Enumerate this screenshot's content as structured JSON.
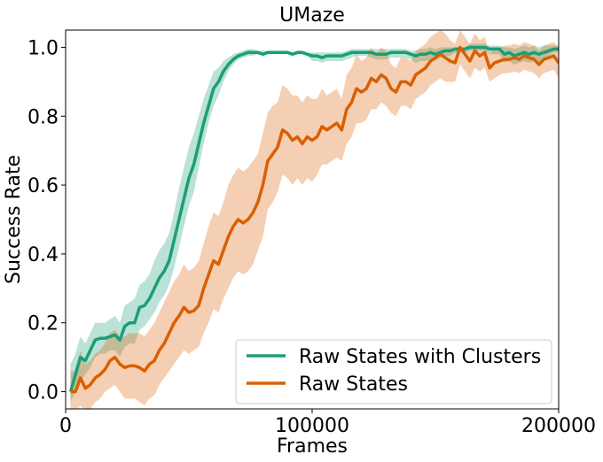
{
  "chart_data": {
    "type": "line",
    "title": "UMaze",
    "xlabel": "Frames",
    "ylabel": "Success Rate",
    "xlim": [
      0,
      200000
    ],
    "ylim": [
      -0.05,
      1.05
    ],
    "x_ticks": [
      0,
      100000,
      200000
    ],
    "x_tick_labels": [
      "0",
      "100000",
      "200000"
    ],
    "y_ticks": [
      0.0,
      0.2,
      0.4,
      0.6,
      0.8,
      1.0
    ],
    "y_tick_labels": [
      "0.0",
      "0.2",
      "0.4",
      "0.6",
      "0.8",
      "1.0"
    ],
    "grid": false,
    "legend_position": "lower-right",
    "x": [
      2000,
      4000,
      6000,
      8000,
      10000,
      12000,
      14000,
      16000,
      18000,
      20000,
      22000,
      24000,
      26000,
      28000,
      30000,
      32000,
      34000,
      36000,
      38000,
      40000,
      42000,
      44000,
      46000,
      48000,
      50000,
      52000,
      54000,
      56000,
      58000,
      60000,
      62000,
      64000,
      66000,
      68000,
      70000,
      72000,
      74000,
      76000,
      78000,
      80000,
      82000,
      84000,
      86000,
      88000,
      90000,
      92000,
      94000,
      96000,
      98000,
      100000,
      102000,
      104000,
      106000,
      108000,
      110000,
      112000,
      114000,
      116000,
      118000,
      120000,
      122000,
      124000,
      126000,
      128000,
      130000,
      132000,
      134000,
      136000,
      138000,
      140000,
      142000,
      144000,
      146000,
      148000,
      150000,
      152000,
      154000,
      156000,
      158000,
      160000,
      162000,
      164000,
      166000,
      168000,
      170000,
      172000,
      174000,
      176000,
      178000,
      180000,
      182000,
      184000,
      186000,
      188000,
      190000,
      192000,
      194000,
      196000,
      198000,
      200000
    ],
    "series": [
      {
        "name": "Raw States with Clusters",
        "color": "#1b9e77",
        "values": [
          0.0,
          0.05,
          0.1,
          0.09,
          0.12,
          0.15,
          0.155,
          0.155,
          0.16,
          0.165,
          0.15,
          0.19,
          0.2,
          0.2,
          0.245,
          0.25,
          0.27,
          0.3,
          0.33,
          0.35,
          0.38,
          0.44,
          0.5,
          0.56,
          0.62,
          0.66,
          0.72,
          0.78,
          0.83,
          0.88,
          0.9,
          0.93,
          0.95,
          0.965,
          0.975,
          0.98,
          0.985,
          0.985,
          0.985,
          0.98,
          0.985,
          0.985,
          0.985,
          0.985,
          0.985,
          0.98,
          0.985,
          0.985,
          0.98,
          0.975,
          0.975,
          0.97,
          0.975,
          0.975,
          0.975,
          0.975,
          0.98,
          0.985,
          0.985,
          0.985,
          0.985,
          0.985,
          0.98,
          0.98,
          0.98,
          0.985,
          0.985,
          0.985,
          0.985,
          0.98,
          0.975,
          0.98,
          0.98,
          0.985,
          0.98,
          0.985,
          0.99,
          0.99,
          0.995,
          0.995,
          0.995,
          1.0,
          1.0,
          1.0,
          1.0,
          0.995,
          0.995,
          0.995,
          0.98,
          0.985,
          0.975,
          0.98,
          0.985,
          0.98,
          0.985,
          0.98,
          0.985,
          0.99,
          0.995,
          0.995
        ],
        "lower": [
          -0.03,
          0.0,
          0.03,
          0.05,
          0.07,
          0.1,
          0.11,
          0.11,
          0.12,
          0.12,
          0.1,
          0.13,
          0.14,
          0.14,
          0.18,
          0.19,
          0.21,
          0.23,
          0.26,
          0.28,
          0.31,
          0.36,
          0.42,
          0.48,
          0.54,
          0.58,
          0.65,
          0.72,
          0.78,
          0.83,
          0.86,
          0.9,
          0.93,
          0.95,
          0.965,
          0.97,
          0.975,
          0.975,
          0.98,
          0.975,
          0.98,
          0.98,
          0.98,
          0.98,
          0.98,
          0.975,
          0.98,
          0.98,
          0.975,
          0.96,
          0.96,
          0.955,
          0.96,
          0.96,
          0.96,
          0.96,
          0.965,
          0.97,
          0.975,
          0.975,
          0.975,
          0.97,
          0.965,
          0.965,
          0.965,
          0.97,
          0.97,
          0.97,
          0.97,
          0.965,
          0.955,
          0.96,
          0.96,
          0.965,
          0.96,
          0.97,
          0.975,
          0.975,
          0.985,
          0.985,
          0.985,
          0.99,
          0.99,
          0.99,
          0.99,
          0.98,
          0.98,
          0.98,
          0.955,
          0.96,
          0.95,
          0.955,
          0.96,
          0.955,
          0.96,
          0.955,
          0.965,
          0.975,
          0.985,
          0.985
        ],
        "upper": [
          0.08,
          0.11,
          0.16,
          0.14,
          0.17,
          0.2,
          0.2,
          0.2,
          0.21,
          0.22,
          0.2,
          0.25,
          0.26,
          0.27,
          0.31,
          0.32,
          0.34,
          0.38,
          0.41,
          0.43,
          0.46,
          0.52,
          0.59,
          0.65,
          0.71,
          0.75,
          0.8,
          0.85,
          0.89,
          0.93,
          0.94,
          0.96,
          0.97,
          0.98,
          0.985,
          0.99,
          0.995,
          0.995,
          0.99,
          0.99,
          0.99,
          0.99,
          0.99,
          0.99,
          0.99,
          0.985,
          0.99,
          0.99,
          0.985,
          0.985,
          0.985,
          0.985,
          0.985,
          0.985,
          0.985,
          0.985,
          0.99,
          0.995,
          0.995,
          0.995,
          0.995,
          0.995,
          0.995,
          0.995,
          0.995,
          0.995,
          0.995,
          0.995,
          0.995,
          0.99,
          0.99,
          0.995,
          0.995,
          1.0,
          0.995,
          1.0,
          1.0,
          1.0,
          1.0,
          1.0,
          1.0,
          1.01,
          1.01,
          1.01,
          1.01,
          1.005,
          1.005,
          1.005,
          1.0,
          1.0,
          0.995,
          1.0,
          1.005,
          1.0,
          1.005,
          1.0,
          1.005,
          1.005,
          1.005,
          1.005
        ]
      },
      {
        "name": "Raw States",
        "color": "#d95f02",
        "values": [
          0.0,
          0.0,
          0.04,
          0.01,
          0.02,
          0.04,
          0.05,
          0.065,
          0.09,
          0.1,
          0.08,
          0.07,
          0.075,
          0.075,
          0.07,
          0.06,
          0.08,
          0.09,
          0.12,
          0.14,
          0.17,
          0.2,
          0.22,
          0.245,
          0.23,
          0.235,
          0.25,
          0.3,
          0.34,
          0.38,
          0.37,
          0.41,
          0.45,
          0.48,
          0.5,
          0.49,
          0.5,
          0.52,
          0.55,
          0.6,
          0.67,
          0.69,
          0.71,
          0.76,
          0.75,
          0.73,
          0.74,
          0.72,
          0.74,
          0.73,
          0.74,
          0.77,
          0.76,
          0.77,
          0.78,
          0.76,
          0.82,
          0.84,
          0.88,
          0.87,
          0.88,
          0.91,
          0.9,
          0.92,
          0.91,
          0.88,
          0.87,
          0.9,
          0.9,
          0.89,
          0.92,
          0.93,
          0.94,
          0.96,
          0.97,
          0.98,
          0.97,
          0.96,
          0.955,
          1.0,
          0.98,
          0.96,
          0.99,
          0.975,
          0.985,
          0.94,
          0.955,
          0.96,
          0.965,
          0.965,
          0.97,
          0.965,
          0.975,
          0.97,
          0.965,
          0.95,
          0.965,
          0.97,
          0.975,
          0.955
        ],
        "lower": [
          -0.06,
          -0.06,
          -0.04,
          -0.06,
          -0.05,
          -0.03,
          -0.02,
          0.0,
          0.01,
          0.02,
          0.0,
          -0.02,
          -0.02,
          -0.02,
          -0.03,
          -0.04,
          -0.02,
          -0.01,
          0.02,
          0.04,
          0.06,
          0.08,
          0.1,
          0.12,
          0.11,
          0.12,
          0.13,
          0.17,
          0.2,
          0.24,
          0.23,
          0.27,
          0.3,
          0.33,
          0.35,
          0.34,
          0.35,
          0.37,
          0.41,
          0.45,
          0.53,
          0.55,
          0.58,
          0.63,
          0.62,
          0.6,
          0.62,
          0.6,
          0.62,
          0.61,
          0.63,
          0.66,
          0.66,
          0.67,
          0.68,
          0.67,
          0.72,
          0.74,
          0.78,
          0.78,
          0.79,
          0.82,
          0.82,
          0.84,
          0.83,
          0.81,
          0.8,
          0.83,
          0.83,
          0.82,
          0.85,
          0.86,
          0.87,
          0.89,
          0.9,
          0.91,
          0.9,
          0.9,
          0.9,
          0.95,
          0.93,
          0.91,
          0.94,
          0.93,
          0.94,
          0.9,
          0.91,
          0.92,
          0.925,
          0.925,
          0.93,
          0.925,
          0.935,
          0.93,
          0.925,
          0.91,
          0.925,
          0.93,
          0.935,
          0.91
        ],
        "upper": [
          0.06,
          0.06,
          0.12,
          0.08,
          0.09,
          0.11,
          0.12,
          0.14,
          0.17,
          0.18,
          0.16,
          0.16,
          0.17,
          0.17,
          0.17,
          0.16,
          0.18,
          0.2,
          0.23,
          0.26,
          0.29,
          0.32,
          0.34,
          0.37,
          0.35,
          0.36,
          0.38,
          0.43,
          0.48,
          0.52,
          0.51,
          0.55,
          0.6,
          0.63,
          0.65,
          0.64,
          0.65,
          0.67,
          0.69,
          0.75,
          0.81,
          0.83,
          0.84,
          0.89,
          0.88,
          0.86,
          0.86,
          0.84,
          0.86,
          0.85,
          0.85,
          0.88,
          0.86,
          0.87,
          0.88,
          0.85,
          0.92,
          0.94,
          0.98,
          0.96,
          0.97,
          1.0,
          0.98,
          1.0,
          0.99,
          0.95,
          0.94,
          0.97,
          0.97,
          0.96,
          0.99,
          1.0,
          1.01,
          1.03,
          1.04,
          1.05,
          1.04,
          1.02,
          1.01,
          1.05,
          1.03,
          1.01,
          1.04,
          1.02,
          1.03,
          0.98,
          1.0,
          1.0,
          1.005,
          1.005,
          1.01,
          1.005,
          1.015,
          1.01,
          1.005,
          0.99,
          1.005,
          1.01,
          1.015,
          1.0
        ]
      }
    ]
  }
}
